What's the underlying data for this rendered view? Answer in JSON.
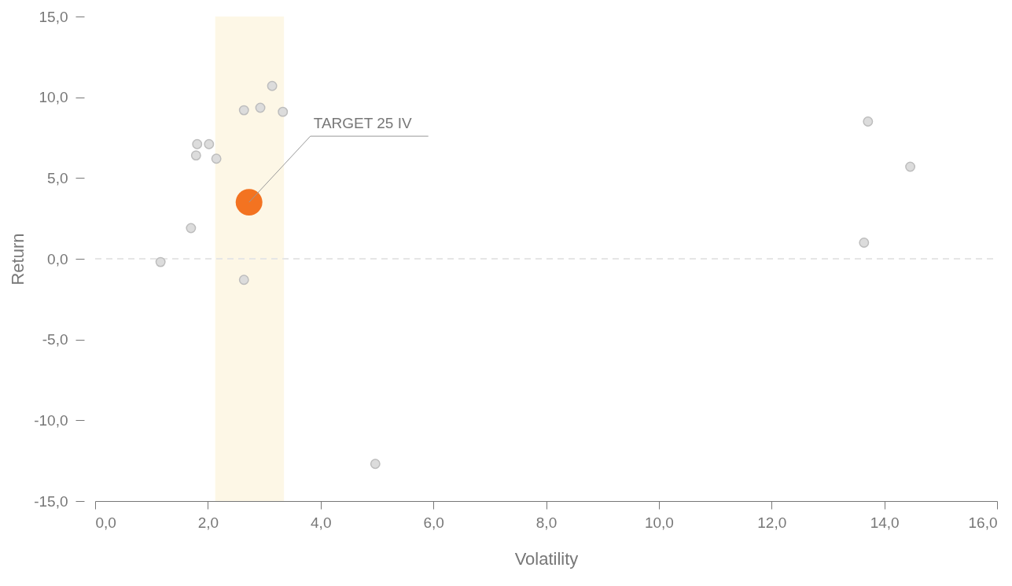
{
  "chart_data": {
    "type": "scatter",
    "xlabel": "Volatility",
    "ylabel": "Return",
    "xlim": [
      0,
      16
    ],
    "ylim": [
      -15,
      15
    ],
    "xticks": [
      {
        "value": 0,
        "label": "0,0"
      },
      {
        "value": 2,
        "label": "2,0"
      },
      {
        "value": 4,
        "label": "4,0"
      },
      {
        "value": 6,
        "label": "6,0"
      },
      {
        "value": 8,
        "label": "8,0"
      },
      {
        "value": 10,
        "label": "10,0"
      },
      {
        "value": 12,
        "label": "12,0"
      },
      {
        "value": 14,
        "label": "14,0"
      },
      {
        "value": 16,
        "label": "16,0"
      }
    ],
    "yticks": [
      {
        "value": -15,
        "label": "-15,0"
      },
      {
        "value": -10,
        "label": "-10,0"
      },
      {
        "value": -5,
        "label": "-5,0"
      },
      {
        "value": 0,
        "label": "0,0"
      },
      {
        "value": 5,
        "label": "5,0"
      },
      {
        "value": 10,
        "label": "10,0"
      },
      {
        "value": 15,
        "label": "15,0"
      }
    ],
    "grid": false,
    "series": [
      {
        "color": "#dcdcdc",
        "x": [
          1.16,
          1.7,
          1.79,
          1.81,
          2.02,
          2.15,
          2.64,
          2.93,
          3.14,
          3.33,
          2.64,
          4.97,
          13.71,
          14.46,
          13.64
        ],
        "values": [
          -0.2,
          1.9,
          6.4,
          7.1,
          7.1,
          6.2,
          9.2,
          9.35,
          10.7,
          9.1,
          -1.3,
          -12.7,
          8.5,
          5.7,
          1.0
        ]
      },
      {
        "color": "#f37321",
        "x": [
          2.73
        ],
        "values": [
          3.5
        ]
      }
    ],
    "ref_lines": [
      {
        "axis": "y",
        "value": 0,
        "color": "#e6e6e6",
        "line_style": "dashed"
      }
    ],
    "bands": [
      {
        "axis": "x",
        "from": 2.13,
        "to": 3.35,
        "color": "#fdf7e6"
      }
    ],
    "annotations": [
      {
        "text": "TARGET 25 IV",
        "x": 2.73,
        "y": 3.5
      }
    ]
  }
}
